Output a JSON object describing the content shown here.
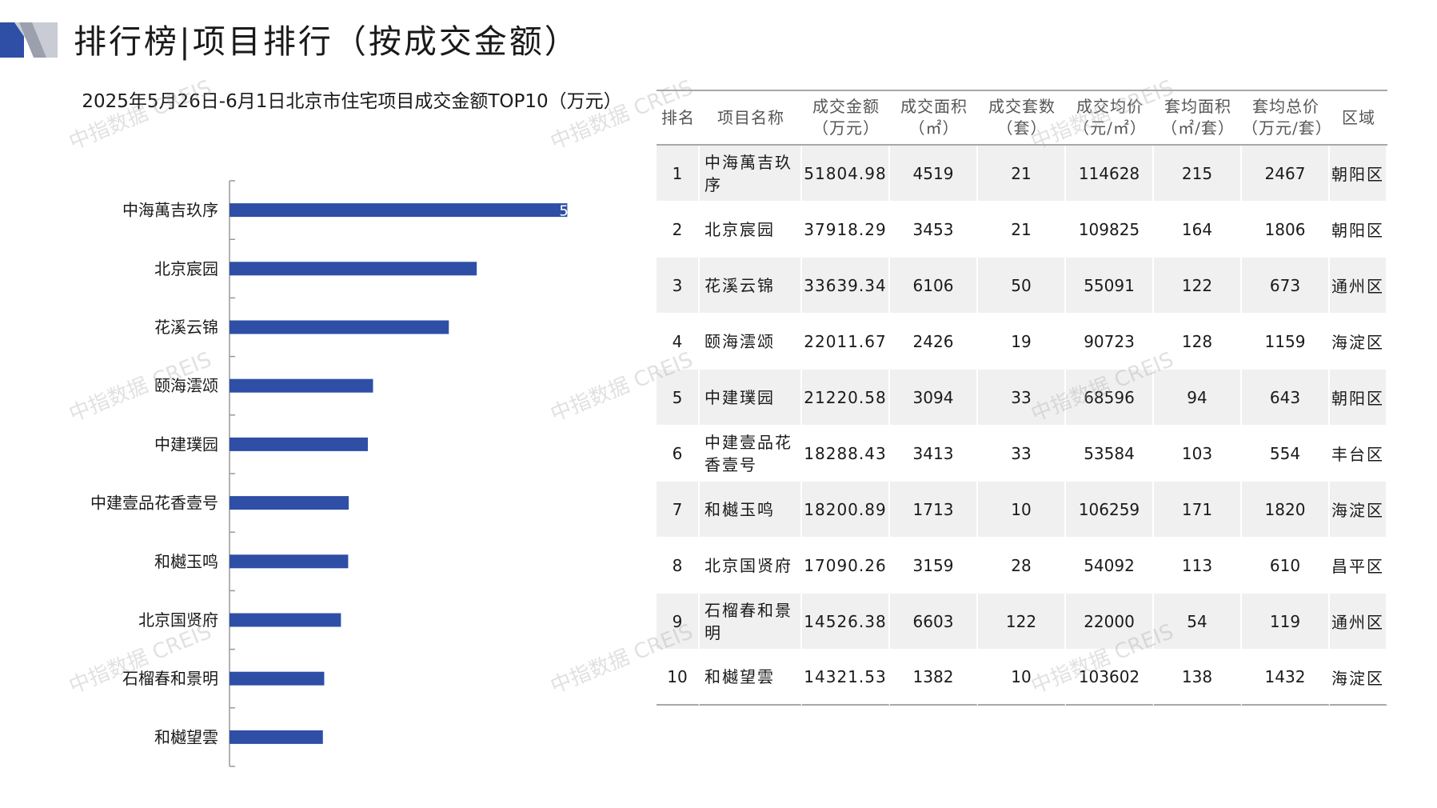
{
  "page": {
    "title": "排行榜|项目排行（按成交金额）",
    "watermark": "中指数据 CREIS"
  },
  "colors": {
    "bar": "#2e4fa5",
    "logo_dark": "#2e4fa5",
    "logo_light": "#c9ccd4"
  },
  "chart_data": {
    "type": "bar",
    "orientation": "horizontal",
    "title": "2025年5月26日-6月1日北京市住宅项目成交金额TOP10（万元）",
    "categories": [
      "中海萬吉玖序",
      "北京宸园",
      "花溪云锦",
      "颐海澐颂",
      "中建璞园",
      "中建壹品花香壹号",
      "和樾玉鸣",
      "北京国贤府",
      "石榴春和景明",
      "和樾望雲"
    ],
    "values": [
      51804.98,
      37918.29,
      33639.34,
      22011.67,
      21220.58,
      18288.43,
      18200.89,
      17090.26,
      14526.38,
      14321.53
    ],
    "partial_data_label": "5",
    "xlim": [
      0,
      52000
    ],
    "grid": false,
    "legend": "none"
  },
  "table": {
    "headers": [
      {
        "lines": [
          "排名"
        ]
      },
      {
        "lines": [
          "项目名称"
        ]
      },
      {
        "lines": [
          "成交金额",
          "（万元）"
        ]
      },
      {
        "lines": [
          "成交面积",
          "（㎡）"
        ]
      },
      {
        "lines": [
          "成交套数",
          "（套）"
        ]
      },
      {
        "lines": [
          "成交均价",
          "（元/㎡）"
        ]
      },
      {
        "lines": [
          "套均面积",
          "（㎡/套）"
        ]
      },
      {
        "lines": [
          "套均总价",
          "（万元/套）"
        ]
      },
      {
        "lines": [
          "区域"
        ]
      }
    ],
    "rows": [
      {
        "rank": "1",
        "name": "中海萬吉玖序",
        "amount": "51804.98",
        "area": "4519",
        "units": "21",
        "avg_price": "114628",
        "avg_area": "215",
        "avg_total": "2467",
        "district": "朝阳区"
      },
      {
        "rank": "2",
        "name": "北京宸园",
        "amount": "37918.29",
        "area": "3453",
        "units": "21",
        "avg_price": "109825",
        "avg_area": "164",
        "avg_total": "1806",
        "district": "朝阳区"
      },
      {
        "rank": "3",
        "name": "花溪云锦",
        "amount": "33639.34",
        "area": "6106",
        "units": "50",
        "avg_price": "55091",
        "avg_area": "122",
        "avg_total": "673",
        "district": "通州区"
      },
      {
        "rank": "4",
        "name": "颐海澐颂",
        "amount": "22011.67",
        "area": "2426",
        "units": "19",
        "avg_price": "90723",
        "avg_area": "128",
        "avg_total": "1159",
        "district": "海淀区"
      },
      {
        "rank": "5",
        "name": "中建璞园",
        "amount": "21220.58",
        "area": "3094",
        "units": "33",
        "avg_price": "68596",
        "avg_area": "94",
        "avg_total": "643",
        "district": "朝阳区"
      },
      {
        "rank": "6",
        "name": "中建壹品花香壹号",
        "amount": "18288.43",
        "area": "3413",
        "units": "33",
        "avg_price": "53584",
        "avg_area": "103",
        "avg_total": "554",
        "district": "丰台区"
      },
      {
        "rank": "7",
        "name": "和樾玉鸣",
        "amount": "18200.89",
        "area": "1713",
        "units": "10",
        "avg_price": "106259",
        "avg_area": "171",
        "avg_total": "1820",
        "district": "海淀区"
      },
      {
        "rank": "8",
        "name": "北京国贤府",
        "amount": "17090.26",
        "area": "3159",
        "units": "28",
        "avg_price": "54092",
        "avg_area": "113",
        "avg_total": "610",
        "district": "昌平区"
      },
      {
        "rank": "9",
        "name": "石榴春和景明",
        "amount": "14526.38",
        "area": "6603",
        "units": "122",
        "avg_price": "22000",
        "avg_area": "54",
        "avg_total": "119",
        "district": "通州区"
      },
      {
        "rank": "10",
        "name": "和樾望雲",
        "amount": "14321.53",
        "area": "1382",
        "units": "10",
        "avg_price": "103602",
        "avg_area": "138",
        "avg_total": "1432",
        "district": "海淀区"
      }
    ]
  }
}
